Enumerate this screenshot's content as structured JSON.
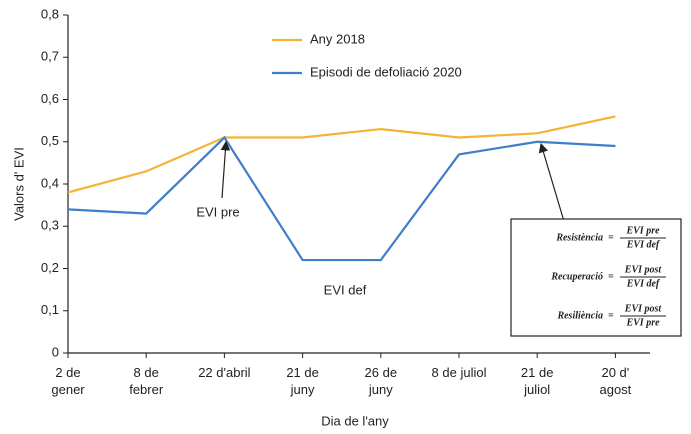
{
  "chart_data": {
    "type": "line",
    "x_label": "Dia de l'any",
    "y_label": "Valors d' EVI",
    "categories": [
      "2 de\ngener",
      "8 de\nfebrer",
      "22 d'abril",
      "21 de\njuny",
      "26 de\njuny",
      "8 de juliol",
      "21 de\njuliol",
      "20 d'\nagost"
    ],
    "series": [
      {
        "name": "Any 2018",
        "color": "#f5b335",
        "values": [
          0.38,
          0.43,
          0.51,
          0.51,
          0.53,
          0.51,
          0.52,
          0.56
        ]
      },
      {
        "name": "Episodi de defoliació 2020",
        "color": "#3f7fc8",
        "values": [
          0.34,
          0.33,
          0.51,
          0.22,
          0.22,
          0.47,
          0.5,
          0.49
        ]
      }
    ],
    "ylim": [
      0,
      0.8
    ],
    "yticks": [
      0,
      {
        "value": 0.1,
        "label": "0,1"
      },
      {
        "value": 0.2,
        "label": "0,2"
      },
      {
        "value": 0.3,
        "label": "0,3"
      },
      {
        "value": 0.4,
        "label": "0,4"
      },
      {
        "value": 0.5,
        "label": "0,5"
      },
      {
        "value": 0.6,
        "label": "0,6"
      },
      {
        "value": 0.7,
        "label": "0,7"
      },
      {
        "value": 0.8,
        "label": "0,8"
      }
    ],
    "grid": false,
    "annotations": [
      "EVI pre",
      "EVI def",
      "EVI post"
    ],
    "formulas": [
      {
        "name": "Resistència",
        "numerator": "EVI pre",
        "denominator": "EVI def"
      },
      {
        "name": "Recuperació",
        "numerator": "EVI post",
        "denominator": "EVI def"
      },
      {
        "name": "Resiliència",
        "numerator": "EVI post",
        "denominator": "EVI pre"
      }
    ]
  }
}
